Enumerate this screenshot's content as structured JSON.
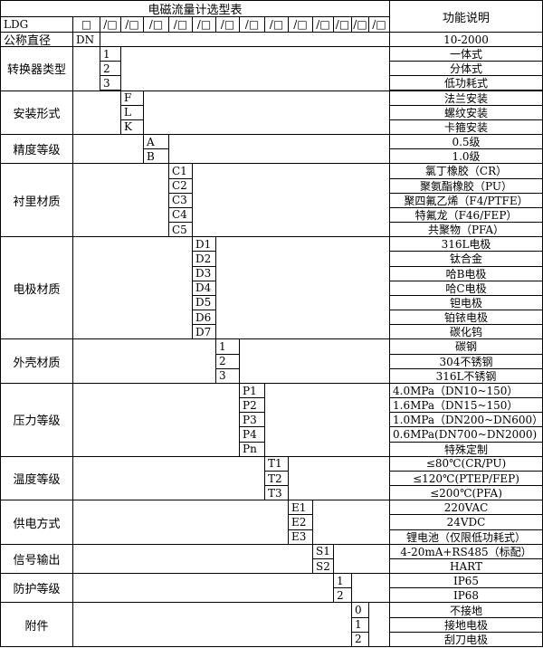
{
  "title": "电磁流量计选型表",
  "desc_header": "功能说明",
  "model_row": {
    "prefix": "LDG",
    "first_box": "□",
    "slot": "/□",
    "slot_count": 13
  },
  "size_row": {
    "label": "公称直径",
    "code": "DN",
    "desc": "10-2000"
  },
  "groups": [
    {
      "label": "转换器类型",
      "options": [
        {
          "code": "1",
          "desc": "一体式"
        },
        {
          "code": "2",
          "desc": "分体式"
        },
        {
          "code": "3",
          "desc": "低功耗式"
        }
      ]
    },
    {
      "label": "安装形式",
      "options": [
        {
          "code": "F",
          "desc": "法兰安装"
        },
        {
          "code": "L",
          "desc": "螺纹安装"
        },
        {
          "code": "K",
          "desc": "卡箍安装"
        }
      ]
    },
    {
      "label": "精度等级",
      "options": [
        {
          "code": "A",
          "desc": "0.5级"
        },
        {
          "code": "B",
          "desc": "1.0级"
        }
      ]
    },
    {
      "label": "衬里材质",
      "options": [
        {
          "code": "C1",
          "desc": "氯丁橡胶（CR）"
        },
        {
          "code": "C2",
          "desc": "聚氨酯橡胶（PU）"
        },
        {
          "code": "C3",
          "desc": "聚四氟乙烯（F4/PTFE）"
        },
        {
          "code": "C4",
          "desc": "特氟龙（F46/FEP）"
        },
        {
          "code": "C5",
          "desc": "共聚物（PFA）"
        }
      ]
    },
    {
      "label": "电极材质",
      "options": [
        {
          "code": "D1",
          "desc": "316L电极"
        },
        {
          "code": "D2",
          "desc": "钛合金"
        },
        {
          "code": "D3",
          "desc": "哈B电极"
        },
        {
          "code": "D4",
          "desc": "哈C电极"
        },
        {
          "code": "D5",
          "desc": "钽电极"
        },
        {
          "code": "D6",
          "desc": "铂铱电极"
        },
        {
          "code": "D7",
          "desc": "碳化钨"
        }
      ]
    },
    {
      "label": "外壳材质",
      "options": [
        {
          "code": "1",
          "desc": "碳钢"
        },
        {
          "code": "2",
          "desc": "304不锈钢"
        },
        {
          "code": "3",
          "desc": "316L不锈钢"
        }
      ]
    },
    {
      "label": "压力等级",
      "left_desc": true,
      "options": [
        {
          "code": "P1",
          "desc": "4.0MPa（DN10~150）"
        },
        {
          "code": "P2",
          "desc": "1.6MPa（DN15~150）"
        },
        {
          "code": "P3",
          "desc": "1.0MPa（DN200~DN600）"
        },
        {
          "code": "P4",
          "desc": "0.6MPa(DN700~DN2000)"
        },
        {
          "code": "Pn",
          "desc": "特殊定制"
        }
      ]
    },
    {
      "label": "温度等级",
      "options": [
        {
          "code": "T1",
          "desc": "≤80℃(CR/PU)"
        },
        {
          "code": "T2",
          "desc": "≤120℃(PTEP/FEP)"
        },
        {
          "code": "T3",
          "desc": "≤200℃(PFA)"
        }
      ]
    },
    {
      "label": "供电方式",
      "options": [
        {
          "code": "E1",
          "desc": "220VAC"
        },
        {
          "code": "E2",
          "desc": "24VDC"
        },
        {
          "code": "E3",
          "desc": "锂电池（仅限低功耗式）"
        }
      ]
    },
    {
      "label": "信号输出",
      "options": [
        {
          "code": "S1",
          "desc": "4-20mA+RS485（标配）"
        },
        {
          "code": "S2",
          "desc": "HART"
        }
      ]
    },
    {
      "label": "防护等级",
      "options": [
        {
          "code": "1",
          "desc": "IP65"
        },
        {
          "code": "2",
          "desc": "IP68"
        }
      ]
    },
    {
      "label": "附件",
      "options": [
        {
          "code": "0",
          "desc": "不接地"
        },
        {
          "code": "1",
          "desc": "接地电极"
        },
        {
          "code": "2",
          "desc": "刮刀电极"
        }
      ]
    }
  ]
}
